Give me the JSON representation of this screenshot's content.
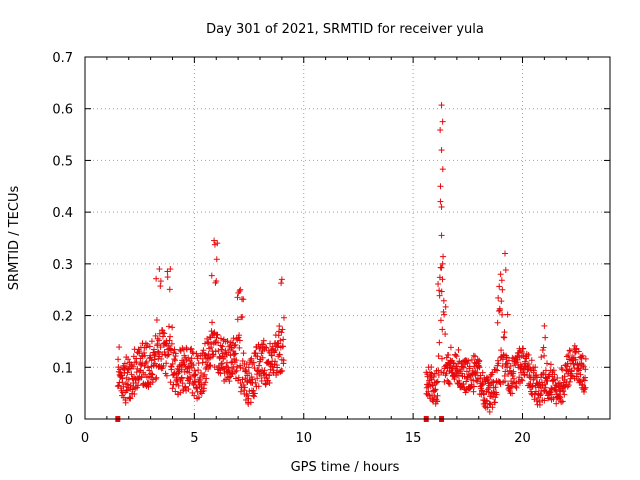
{
  "chart_data": {
    "type": "scatter",
    "title": "Day 301 of 2021, SRMTID for receiver yula",
    "xlabel": "GPS time / hours",
    "ylabel": "SRMTID / TECUs",
    "xlim": [
      0,
      24
    ],
    "ylim": [
      0,
      0.7
    ],
    "xticks": [
      "0",
      "5",
      "10",
      "15",
      "20"
    ],
    "xtick_values": [
      0,
      5,
      10,
      15,
      20
    ],
    "yticks": [
      "0",
      "0.1",
      "0.2",
      "0.3",
      "0.4",
      "0.5",
      "0.6",
      "0.7"
    ],
    "ytick_values": [
      0,
      0.1,
      0.2,
      0.3,
      0.4,
      0.5,
      0.6,
      0.7
    ],
    "grid": true,
    "marker": "+",
    "color": "#e8080b",
    "segments": [
      {
        "x_start": 1.5,
        "x_end": 9.1,
        "baseline": 0.105,
        "spread": 0.045
      },
      {
        "x_start": 15.6,
        "x_end": 22.9,
        "baseline": 0.08,
        "spread": 0.035
      }
    ],
    "peaks": [
      {
        "x": 3.4,
        "y": 0.29
      },
      {
        "x": 3.9,
        "y": 0.29
      },
      {
        "x": 5.9,
        "y": 0.345
      },
      {
        "x": 7.1,
        "y": 0.25
      },
      {
        "x": 9.0,
        "y": 0.27
      },
      {
        "x": 16.3,
        "y": 0.607
      },
      {
        "x": 16.35,
        "y": 0.575
      },
      {
        "x": 16.3,
        "y": 0.52
      },
      {
        "x": 16.25,
        "y": 0.45
      },
      {
        "x": 16.3,
        "y": 0.41
      },
      {
        "x": 16.3,
        "y": 0.355
      },
      {
        "x": 16.35,
        "y": 0.3
      },
      {
        "x": 19.0,
        "y": 0.28
      },
      {
        "x": 19.2,
        "y": 0.32
      },
      {
        "x": 21.0,
        "y": 0.18
      }
    ],
    "zero_markers": [
      1.5,
      15.6,
      16.3
    ]
  }
}
